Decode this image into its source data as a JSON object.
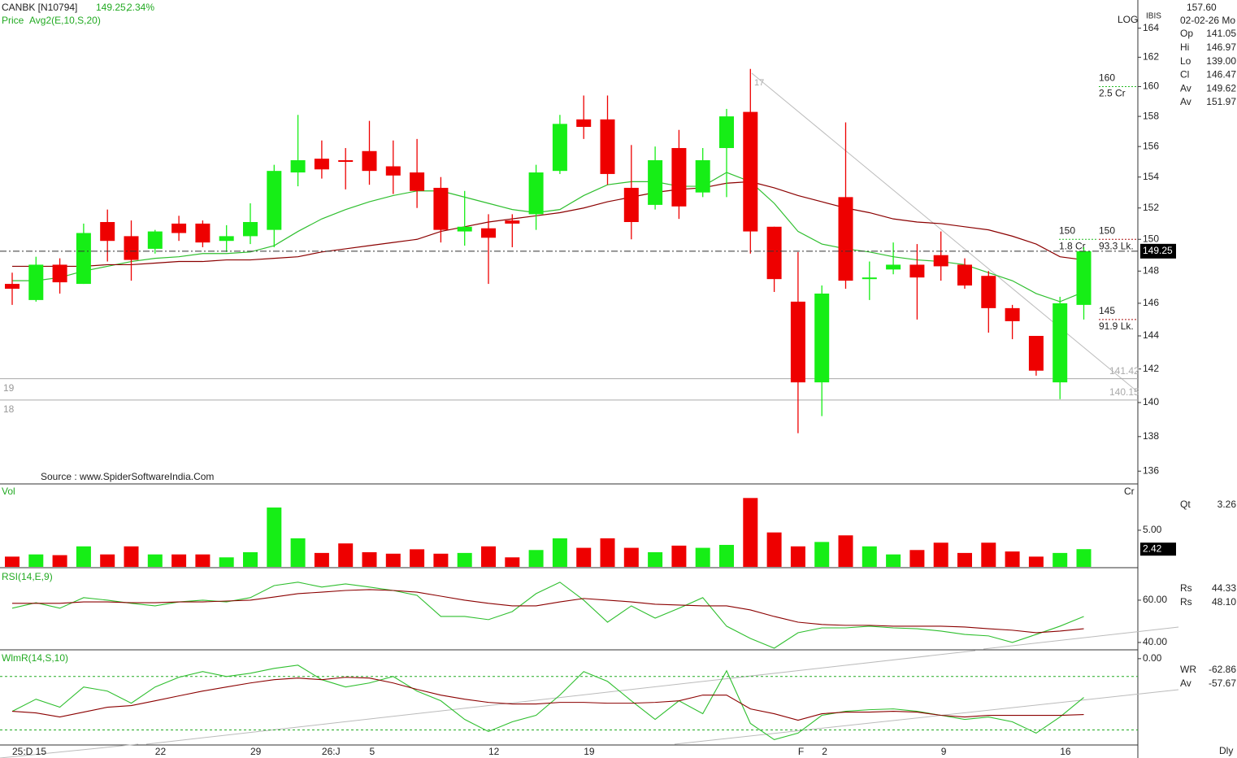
{
  "header": {
    "symbol": "CANBK [N10794]",
    "last": "149.25,",
    "change": "2.34%",
    "indicator_label": "Price",
    "indicator": "Avg2(E,10,S,20)",
    "source": "Source : www.SpiderSoftwareIndia.Com",
    "scale_mode": "LOG",
    "exchange": "IBIS",
    "period": "Dly"
  },
  "info_panel": {
    "price": "157.60",
    "date": "02-02-26 Mo",
    "rows": [
      {
        "label": "Op",
        "value": "141.05",
        "color": "#22bb22"
      },
      {
        "label": "Hi",
        "value": "146.97",
        "color": "#aa1111"
      },
      {
        "label": "Lo",
        "value": "139.00",
        "color": "#aaaaaa"
      },
      {
        "label": "Cl",
        "value": "146.47",
        "color": "#cc00cc"
      },
      {
        "label": "Av",
        "value": "149.62",
        "color": "#22bb22"
      },
      {
        "label": "Av",
        "value": "151.97",
        "color": "#aa1111"
      }
    ]
  },
  "chart_data": [
    {
      "type": "candlestick",
      "categories": [
        "25:D 15",
        null,
        null,
        null,
        null,
        null,
        "22",
        null,
        null,
        null,
        "29",
        null,
        null,
        "26:J",
        null,
        "5",
        null,
        null,
        null,
        null,
        "12",
        null,
        null,
        null,
        "19",
        null,
        null,
        null,
        null,
        null,
        null,
        null,
        null,
        "F",
        "2",
        null,
        null,
        null,
        null,
        "9",
        null,
        null,
        null,
        null,
        "16",
        null
      ],
      "open": [
        147.2,
        146.2,
        148.4,
        147.2,
        151.1,
        150.2,
        149.4,
        151.0,
        151.0,
        149.9,
        150.2,
        150.6,
        154.3,
        155.2,
        155.1,
        155.7,
        154.7,
        154.3,
        153.3,
        150.5,
        150.7,
        151.2,
        151.6,
        154.4,
        157.8,
        157.8,
        153.3,
        152.2,
        155.9,
        153.0,
        155.9,
        158.3,
        150.8,
        146.1,
        141.2,
        152.7,
        147.5,
        148.1,
        148.4,
        149.0,
        148.4,
        147.7,
        145.7,
        144.0,
        141.2,
        145.9
      ],
      "high": [
        147.9,
        148.9,
        148.8,
        151.0,
        151.9,
        151.2,
        150.6,
        151.5,
        151.2,
        150.9,
        152.3,
        154.8,
        158.1,
        156.4,
        155.9,
        157.7,
        156.4,
        156.5,
        154.0,
        153.1,
        151.6,
        151.6,
        154.8,
        158.1,
        159.4,
        159.4,
        156.1,
        156.0,
        157.1,
        155.9,
        158.5,
        161.2,
        150.8,
        149.2,
        147.1,
        157.6,
        148.6,
        149.8,
        149.7,
        150.5,
        148.8,
        148.0,
        145.9,
        144.0,
        146.4,
        149.5
      ],
      "low": [
        145.9,
        146.1,
        146.6,
        147.2,
        148.6,
        147.4,
        149.1,
        149.9,
        149.5,
        149.2,
        149.7,
        149.5,
        153.4,
        153.9,
        153.2,
        153.5,
        152.9,
        152.0,
        149.8,
        149.6,
        147.2,
        149.5,
        150.6,
        154.2,
        156.5,
        153.5,
        150.0,
        151.9,
        151.3,
        152.7,
        152.7,
        149.1,
        146.7,
        138.2,
        139.2,
        146.9,
        146.2,
        147.8,
        145.0,
        147.4,
        146.9,
        144.2,
        143.8,
        141.6,
        140.2,
        145.0
      ],
      "close": [
        146.9,
        148.4,
        147.3,
        150.4,
        149.9,
        148.7,
        150.5,
        150.4,
        149.8,
        150.2,
        151.1,
        154.4,
        155.1,
        154.5,
        155.0,
        154.4,
        154.1,
        153.1,
        150.6,
        150.8,
        150.1,
        151.0,
        154.3,
        157.5,
        157.3,
        154.2,
        151.1,
        155.1,
        152.1,
        155.1,
        158.0,
        150.5,
        147.5,
        141.2,
        146.6,
        147.4,
        147.6,
        148.4,
        147.6,
        148.3,
        147.1,
        145.7,
        144.9,
        141.9,
        146.0,
        149.25
      ],
      "up_color": "#16ee16",
      "down_color": "#ee0000",
      "log_scale": true,
      "ylim": [
        135.5,
        165
      ],
      "yticks": [
        136,
        138,
        140,
        142,
        144,
        146,
        148,
        150,
        152,
        154,
        156,
        158,
        160,
        162,
        164
      ],
      "moving_averages": [
        {
          "color": "#2fbf2f",
          "values": [
            147.4,
            147.4,
            147.6,
            148.0,
            148.3,
            148.6,
            148.8,
            148.9,
            149.1,
            149.1,
            149.2,
            149.6,
            150.5,
            151.3,
            151.9,
            152.4,
            152.8,
            153.1,
            153.1,
            152.7,
            152.3,
            151.9,
            151.7,
            151.9,
            152.8,
            153.5,
            153.7,
            153.7,
            153.4,
            153.4,
            154.3,
            153.7,
            152.3,
            150.5,
            149.7,
            149.4,
            149.2,
            148.9,
            148.7,
            148.6,
            148.4,
            147.9,
            147.4,
            146.6,
            146.1,
            146.7
          ]
        },
        {
          "color": "#8b0000",
          "values": [
            148.3,
            148.3,
            148.3,
            148.3,
            148.4,
            148.4,
            148.5,
            148.6,
            148.6,
            148.7,
            148.7,
            148.8,
            148.9,
            149.2,
            149.4,
            149.6,
            149.8,
            150.0,
            150.5,
            150.8,
            151.1,
            151.3,
            151.5,
            151.7,
            152.0,
            152.4,
            152.7,
            153.0,
            153.2,
            153.3,
            153.6,
            153.7,
            153.3,
            152.8,
            152.4,
            152.0,
            151.7,
            151.3,
            151.1,
            151.0,
            150.8,
            150.6,
            150.2,
            149.7,
            148.9,
            148.7
          ]
        }
      ],
      "hlines": [
        141.42,
        140.15
      ],
      "hline_tags": [
        "19",
        "18"
      ],
      "annotations": [
        {
          "price": 160,
          "volume": "2.5 Cr",
          "color": "#22bb22"
        },
        {
          "price": 150,
          "volume": "1.8 Cr",
          "color": "#22bb22"
        },
        {
          "price": 150,
          "volume": "93.3 Lk.",
          "color": "#aa1111"
        },
        {
          "price": 145,
          "volume": "91.9 Lk.",
          "color": "#aa1111"
        }
      ],
      "trend_label": "17"
    },
    {
      "type": "bar",
      "title": "Vol",
      "unit": "Cr",
      "values": [
        1.4,
        1.7,
        1.6,
        2.8,
        1.7,
        2.8,
        1.7,
        1.7,
        1.7,
        1.3,
        2.0,
        8.1,
        3.9,
        1.9,
        3.2,
        2.0,
        1.8,
        2.4,
        1.8,
        1.9,
        2.8,
        1.3,
        2.3,
        3.9,
        2.6,
        3.9,
        2.6,
        2.0,
        2.9,
        2.6,
        3.0,
        9.4,
        4.7,
        2.8,
        3.4,
        4.3,
        2.8,
        1.7,
        2.3,
        3.3,
        1.9,
        3.3,
        2.1,
        1.4,
        1.9,
        2.42
      ],
      "ylim": [
        0,
        11.1
      ],
      "yticks": [
        {
          "value": 5,
          "label": "5.00"
        }
      ],
      "info": [
        {
          "label": "Qt",
          "value": "3.26",
          "color": "#22bb22"
        }
      ]
    },
    {
      "type": "line",
      "title": "RSI(14,E,9)",
      "series": [
        {
          "color": "#2fbf2f",
          "values": [
            56.2,
            58.8,
            56.2,
            61.2,
            60,
            58.5,
            57.3,
            59.2,
            60,
            59.2,
            61.2,
            66.9,
            68.5,
            66.2,
            67.7,
            66.2,
            64.6,
            62.3,
            52.3,
            52.3,
            50.8,
            54.6,
            63.1,
            68.5,
            60,
            49.6,
            57.3,
            51.5,
            56.2,
            61.2,
            47.7,
            41.9,
            37.3,
            44.6,
            46.9,
            46.9,
            47.7,
            46.9,
            46.5,
            45.4,
            43.8,
            43.1,
            40.0,
            43.8,
            47.7,
            52.3
          ]
        },
        {
          "color": "#8b0000",
          "values": [
            58.5,
            58.5,
            58.5,
            59.2,
            59.2,
            58.8,
            58.8,
            59.2,
            59.2,
            59.6,
            60,
            61.5,
            63.1,
            63.8,
            64.6,
            65,
            64.6,
            63.8,
            61.9,
            60,
            58.5,
            57.3,
            57.3,
            59.2,
            60.8,
            60,
            59.2,
            58.1,
            57.7,
            57.3,
            57.3,
            55.4,
            52.3,
            49.6,
            48.5,
            48.1,
            48.1,
            47.7,
            47.7,
            47.7,
            47.3,
            46.5,
            45.8,
            44.6,
            45.4,
            46.5
          ]
        }
      ],
      "ylim": [
        36.9,
        74.6
      ],
      "yticks": [
        {
          "value": 40,
          "label": "40.00"
        },
        {
          "value": 60,
          "label": "60.00"
        }
      ],
      "info": [
        {
          "label": "Rs",
          "value": "44.33",
          "color": "#22bb22"
        },
        {
          "label": "Rs",
          "value": "48.10",
          "color": "#aa1111"
        }
      ]
    },
    {
      "type": "line",
      "title": "WlmR(14,S,10)",
      "series": [
        {
          "color": "#2fbf2f",
          "values": [
            -59.1,
            -45.5,
            -54.5,
            -31.8,
            -36.4,
            -50,
            -31.8,
            -20.9,
            -14.5,
            -20,
            -16.4,
            -10.9,
            -7.3,
            -23.6,
            -31.8,
            -27.3,
            -20,
            -36.4,
            -47.3,
            -68.2,
            -81.8,
            -70.9,
            -63.6,
            -40.9,
            -14.5,
            -25.5,
            -47.3,
            -68.2,
            -47.3,
            -61.8,
            -13.6,
            -72.7,
            -90.9,
            -83.6,
            -63.6,
            -59.1,
            -57.3,
            -56.4,
            -59.1,
            -63.6,
            -68.2,
            -65.5,
            -70.9,
            -83.6,
            -65.5,
            -43.6
          ]
        },
        {
          "color": "#8b0000",
          "values": [
            -59.1,
            -60.9,
            -65.5,
            -60,
            -54.5,
            -52.7,
            -47.3,
            -41.8,
            -36.4,
            -31.8,
            -27.3,
            -23.6,
            -21.8,
            -23.6,
            -20.9,
            -21.8,
            -27.3,
            -34.5,
            -40.9,
            -45.5,
            -49.1,
            -50.9,
            -50.9,
            -49.1,
            -49.1,
            -50,
            -50,
            -49.1,
            -47.3,
            -40.9,
            -40.9,
            -56.4,
            -61.8,
            -69.1,
            -61.8,
            -60,
            -60,
            -59.1,
            -60,
            -63.6,
            -65.5,
            -63.6,
            -63.6,
            -63.6,
            -63.6,
            -62.7
          ]
        }
      ],
      "ylim": [
        -96,
        9
      ],
      "yticks": [
        {
          "value": 0,
          "label": "0.00"
        }
      ],
      "levels": [
        -20,
        -80
      ],
      "info": [
        {
          "label": "WR",
          "value": "-62.86",
          "color": "#22bb22"
        },
        {
          "label": "Av",
          "value": "-57.67",
          "color": "#aa1111"
        }
      ]
    }
  ]
}
